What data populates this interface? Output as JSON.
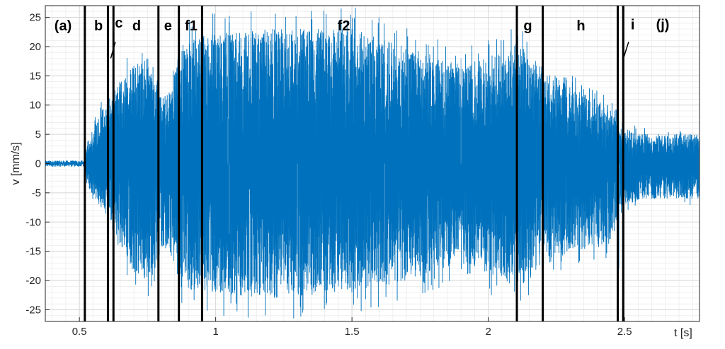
{
  "chart_data": {
    "type": "line",
    "title": "",
    "xlabel": "t [s]",
    "ylabel": "v [mm/s]",
    "xlim": [
      0.375,
      2.775
    ],
    "ylim": [
      -27,
      27
    ],
    "x_ticks": [
      0.5,
      1,
      1.5,
      2,
      2.5
    ],
    "x_tick_labels": [
      "0.5",
      "1",
      "1.5",
      "2",
      "2.5"
    ],
    "y_ticks": [
      25,
      20,
      15,
      10,
      5,
      0,
      -5,
      -10,
      -15,
      -20,
      -25
    ],
    "y_tick_labels": [
      "25",
      "20",
      "15",
      "10",
      "5",
      "0",
      "-5",
      "-10",
      "-15",
      "-20",
      "-25"
    ],
    "grid": true,
    "minor_grid": true,
    "series_color": "#0072BD",
    "series": [
      {
        "name": "",
        "envelope": [
          {
            "t": 0.375,
            "max": 0.6,
            "min": -0.6
          },
          {
            "t": 0.52,
            "max": 0.6,
            "min": -0.6
          },
          {
            "t": 0.53,
            "max": 4,
            "min": -4
          },
          {
            "t": 0.56,
            "max": 7,
            "min": -6
          },
          {
            "t": 0.6,
            "max": 11,
            "min": -9
          },
          {
            "t": 0.625,
            "max": 13,
            "min": -11
          },
          {
            "t": 0.65,
            "max": 14,
            "min": -14
          },
          {
            "t": 0.7,
            "max": 17,
            "min": -19
          },
          {
            "t": 0.75,
            "max": 18,
            "min": -20
          },
          {
            "t": 0.79,
            "max": 15,
            "min": -18
          },
          {
            "t": 0.8,
            "max": 11,
            "min": -14
          },
          {
            "t": 0.84,
            "max": 13,
            "min": -16
          },
          {
            "t": 0.865,
            "max": 20,
            "min": -21
          },
          {
            "t": 0.95,
            "max": 22,
            "min": -22
          },
          {
            "t": 1.2,
            "max": 23,
            "min": -23
          },
          {
            "t": 1.5,
            "max": 23,
            "min": -22
          },
          {
            "t": 1.7,
            "max": 20,
            "min": -20
          },
          {
            "t": 1.9,
            "max": 17,
            "min": -17
          },
          {
            "t": 2.05,
            "max": 19,
            "min": -20
          },
          {
            "t": 2.1,
            "max": 21,
            "min": -22
          },
          {
            "t": 2.19,
            "max": 17,
            "min": -18
          },
          {
            "t": 2.3,
            "max": 13,
            "min": -15
          },
          {
            "t": 2.44,
            "max": 10,
            "min": -14
          },
          {
            "t": 2.47,
            "max": 8,
            "min": -11
          },
          {
            "t": 2.49,
            "max": 6,
            "min": -7
          },
          {
            "t": 2.6,
            "max": 5,
            "min": -6
          },
          {
            "t": 2.775,
            "max": 5,
            "min": -6
          }
        ]
      }
    ],
    "boundaries": [
      0.52,
      0.605,
      0.625,
      0.79,
      0.865,
      0.95,
      2.105,
      2.2,
      2.475,
      2.495
    ],
    "segment_labels": [
      {
        "label": "(a)",
        "t": 0.44,
        "v": 23.6
      },
      {
        "label": "b",
        "t": 0.57,
        "v": 23.6
      },
      {
        "label": "c",
        "t": 0.645,
        "v": 24.1
      },
      {
        "label": "d",
        "t": 0.71,
        "v": 23.6
      },
      {
        "label": "e",
        "t": 0.825,
        "v": 23.6
      },
      {
        "label": "f1",
        "t": 0.91,
        "v": 23.6
      },
      {
        "label": "f2",
        "t": 1.47,
        "v": 23.6
      },
      {
        "label": "g",
        "t": 2.145,
        "v": 23.6
      },
      {
        "label": "h",
        "t": 2.34,
        "v": 23.6
      },
      {
        "label": "i",
        "t": 2.53,
        "v": 23.8
      },
      {
        "label": "(j)",
        "t": 2.64,
        "v": 23.8
      }
    ],
    "callouts": [
      {
        "from_t": 0.632,
        "from_v": 20.8,
        "to_t": 0.615,
        "to_v": 18.0
      },
      {
        "from_t": 2.515,
        "from_v": 20.8,
        "to_t": 2.498,
        "to_v": 18.3
      }
    ]
  }
}
